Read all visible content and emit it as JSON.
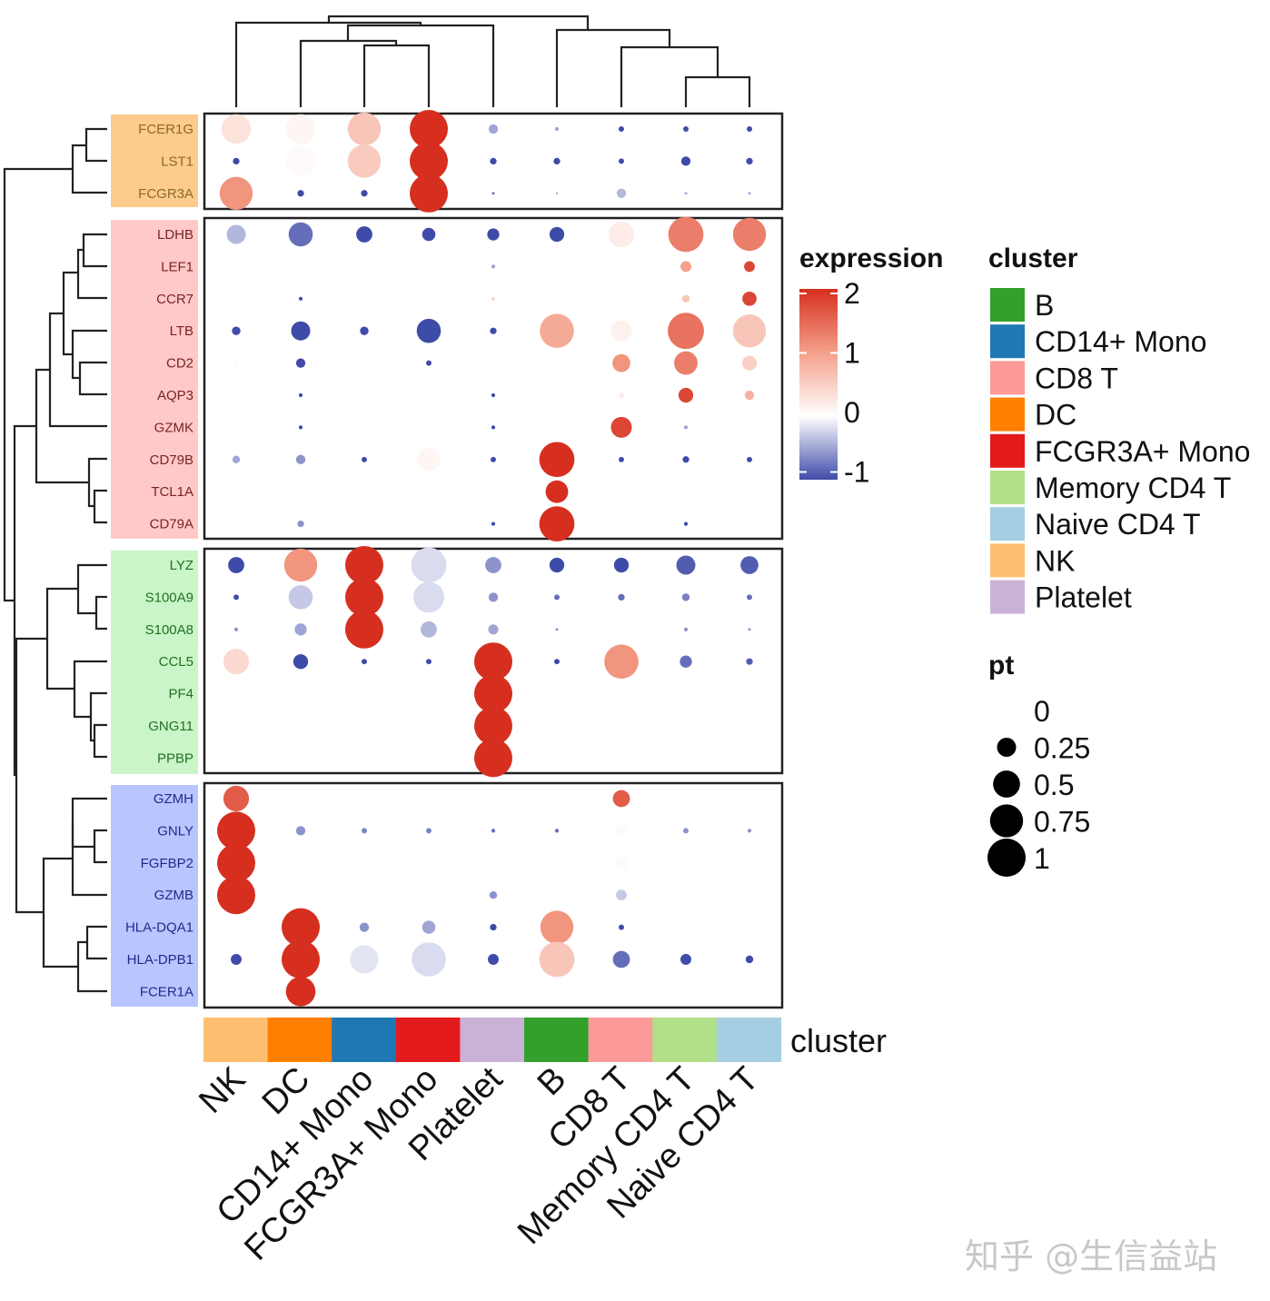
{
  "chart_data": {
    "type": "heatmap",
    "subtype": "dot plot with dendrograms",
    "clusters": [
      "NK",
      "DC",
      "CD14+ Mono",
      "FCGR3A+ Mono",
      "Platelet",
      "B",
      "CD8 T",
      "Memory CD4 T",
      "Naive CD4 T"
    ],
    "gene_groups": [
      {
        "color": "#FDCB8C",
        "text_color": "#8A6A2A",
        "genes": [
          "FCER1G",
          "LST1",
          "FCGR3A"
        ]
      },
      {
        "color": "#FFC9C9",
        "text_color": "#7A2424",
        "genes": [
          "LDHB",
          "LEF1",
          "CCR7",
          "LTB",
          "CD2",
          "AQP3",
          "GZMK",
          "CD79B",
          "TCL1A",
          "CD79A"
        ]
      },
      {
        "color": "#C9F5C9",
        "text_color": "#237023",
        "genes": [
          "LYZ",
          "S100A9",
          "S100A8",
          "CCL5",
          "PF4",
          "GNG11",
          "PPBP"
        ]
      },
      {
        "color": "#B9C5FF",
        "text_color": "#1E2C8C",
        "genes": [
          "GZMH",
          "GNLY",
          "FGFBP2",
          "GZMB",
          "HLA-DQA1",
          "HLA-DPB1",
          "FCER1A"
        ]
      }
    ],
    "expression": [
      [
        0.3,
        0.1,
        0.6,
        2,
        -0.5,
        -0.5,
        -1,
        -1,
        -1
      ],
      [
        -1,
        0.05,
        0.55,
        2,
        -1,
        -1,
        -1,
        -1,
        -1
      ],
      [
        1.1,
        -1,
        -1,
        2,
        -0.8,
        -0.5,
        -0.4,
        -0.5,
        -0.5
      ],
      [
        -0.4,
        -0.8,
        -1,
        -1,
        -1,
        -1,
        0.2,
        1.3,
        1.3
      ],
      [
        0,
        0,
        0,
        0,
        -0.5,
        0,
        0,
        1.0,
        1.8
      ],
      [
        0,
        -1,
        0,
        0,
        0.4,
        0,
        0,
        0.6,
        1.8
      ],
      [
        -1,
        -1,
        -1,
        -1,
        -1,
        0.9,
        0.15,
        1.4,
        0.6
      ],
      [
        0.05,
        -1,
        0,
        -1,
        0,
        0,
        1.1,
        1.3,
        0.5
      ],
      [
        0,
        -1,
        0,
        0,
        -1,
        0,
        0.2,
        1.8,
        0.8
      ],
      [
        0,
        -1,
        0,
        0,
        -1,
        0,
        1.8,
        -0.5,
        0
      ],
      [
        -0.5,
        -0.6,
        -1,
        0.1,
        -1,
        2,
        -1,
        -1,
        -1
      ],
      [
        0,
        0,
        0,
        0,
        0,
        2,
        0,
        0,
        0
      ],
      [
        0,
        -0.6,
        0,
        0,
        -1,
        2,
        0,
        -1,
        0
      ],
      [
        -1,
        1.1,
        2,
        -0.2,
        -0.6,
        -1,
        -1,
        -0.9,
        -0.9
      ],
      [
        -1,
        -0.3,
        2,
        -0.2,
        -0.6,
        -0.8,
        -0.8,
        -0.7,
        -0.8
      ],
      [
        -0.6,
        -0.5,
        2,
        -0.4,
        -0.5,
        -0.6,
        0,
        -0.6,
        -0.6
      ],
      [
        0.4,
        -1,
        -1,
        -1,
        2,
        -1,
        1.1,
        -0.8,
        -0.9
      ],
      [
        0,
        0,
        0,
        0,
        2,
        0,
        0,
        0,
        0
      ],
      [
        0,
        0,
        0,
        0,
        2,
        0,
        0,
        0,
        0
      ],
      [
        0,
        0,
        0,
        0,
        2,
        0,
        0,
        0,
        0
      ],
      [
        1.6,
        0,
        0,
        0,
        0,
        0,
        1.6,
        0,
        0
      ],
      [
        2,
        -0.6,
        -0.7,
        -0.7,
        -0.8,
        -0.8,
        0.05,
        -0.6,
        -0.6
      ],
      [
        2,
        0,
        0,
        0,
        0,
        0,
        0.05,
        0,
        0
      ],
      [
        2,
        0,
        0,
        0,
        -0.6,
        0,
        -0.3,
        0,
        0
      ],
      [
        0,
        2,
        -0.6,
        -0.5,
        -1,
        1.1,
        -1,
        0,
        0
      ],
      [
        -1,
        2,
        -0.15,
        -0.2,
        -1,
        0.6,
        -0.8,
        -1,
        -1
      ],
      [
        0,
        2,
        0,
        0,
        0,
        0,
        0,
        0,
        0
      ]
    ],
    "pt": [
      [
        0.6,
        0.6,
        0.75,
        1,
        0.06,
        0.01,
        0.02,
        0.02,
        0.02
      ],
      [
        0.03,
        0.6,
        0.75,
        1,
        0.03,
        0.03,
        0.02,
        0.06,
        0.03
      ],
      [
        0.75,
        0.03,
        0.03,
        1,
        0.005,
        0.003,
        0.06,
        0.005,
        0.005
      ],
      [
        0.25,
        0.4,
        0.18,
        0.12,
        0.1,
        0.15,
        0.45,
        0.85,
        0.75
      ],
      [
        0.003,
        0.003,
        0.005,
        0.005,
        0.01,
        0.003,
        0.005,
        0.08,
        0.08
      ],
      [
        0.003,
        0.01,
        0.003,
        0.005,
        0.01,
        0.003,
        0.003,
        0.04,
        0.14
      ],
      [
        0.05,
        0.25,
        0.05,
        0.4,
        0.03,
        0.8,
        0.3,
        0.9,
        0.75
      ],
      [
        0.02,
        0.06,
        0.003,
        0.02,
        0,
        0.003,
        0.22,
        0.38,
        0.15
      ],
      [
        0.003,
        0.01,
        0.003,
        0.003,
        0.01,
        0.003,
        0.02,
        0.15,
        0.06
      ],
      [
        0.003,
        0.01,
        0.003,
        0.003,
        0.01,
        0.003,
        0.3,
        0.01,
        0.005
      ],
      [
        0.04,
        0.06,
        0.02,
        0.35,
        0.02,
        0.85,
        0.02,
        0.03,
        0.02
      ],
      [
        0.003,
        0.003,
        0.003,
        0.003,
        0,
        0.35,
        0,
        0,
        0.003
      ],
      [
        0.003,
        0.03,
        0.003,
        0.003,
        0.01,
        0.85,
        0,
        0.01,
        0.003
      ],
      [
        0.18,
        0.75,
        1,
        0.85,
        0.18,
        0.15,
        0.15,
        0.25,
        0.22
      ],
      [
        0.02,
        0.4,
        1,
        0.65,
        0.06,
        0.02,
        0.03,
        0.04,
        0.02
      ],
      [
        0.01,
        0.1,
        1,
        0.18,
        0.07,
        0.005,
        0.003,
        0.01,
        0.005
      ],
      [
        0.45,
        0.15,
        0.02,
        0.02,
        1,
        0.02,
        0.8,
        0.1,
        0.03
      ],
      [
        0,
        0.005,
        0.003,
        0.003,
        1,
        0,
        0,
        0,
        0
      ],
      [
        0,
        0.003,
        0.003,
        0.003,
        1,
        0,
        0.003,
        0,
        0
      ],
      [
        0,
        0.003,
        0.003,
        0.005,
        1,
        0,
        0,
        0.003,
        0
      ],
      [
        0.45,
        0.003,
        0.003,
        0.003,
        0,
        0,
        0.2,
        0.003,
        0.003
      ],
      [
        1,
        0.06,
        0.02,
        0.02,
        0.01,
        0.01,
        0.1,
        0.02,
        0.01
      ],
      [
        1,
        0.003,
        0.003,
        0.003,
        0,
        0.003,
        0.1,
        0.003,
        0.003
      ],
      [
        1,
        0,
        0.005,
        0.005,
        0.04,
        0,
        0.08,
        0.005,
        0.005
      ],
      [
        0.003,
        1,
        0.06,
        0.12,
        0.03,
        0.75,
        0.02,
        0.003,
        0.003
      ],
      [
        0.08,
        1,
        0.55,
        0.8,
        0.08,
        0.85,
        0.2,
        0.08,
        0.04
      ],
      [
        0.003,
        0.6,
        0.003,
        0,
        0,
        0,
        0,
        0,
        0
      ]
    ],
    "cluster_colors": {
      "NK": "#FDBF6F",
      "DC": "#FF7F00",
      "CD14+ Mono": "#1F78B4",
      "FCGR3A+ Mono": "#E31A1C",
      "Platelet": "#CAB2D6",
      "B": "#33A02C",
      "CD8 T": "#FB9A99",
      "Memory CD4 T": "#B2DF8A",
      "Naive CD4 T": "#A6CEE3"
    },
    "annotation_label": "cluster",
    "color_legend": {
      "title": "expression",
      "ticks": [
        "2",
        "1",
        "0",
        "-1"
      ],
      "range": [
        -1,
        2
      ],
      "colors": {
        "low": "#3F4BA8",
        "mid": "#FFFFFF",
        "high": "#D62F1F"
      }
    },
    "cluster_legend": {
      "title": "cluster",
      "items": [
        "B",
        "CD14+ Mono",
        "CD8 T",
        "DC",
        "FCGR3A+ Mono",
        "Memory CD4 T",
        "Naive CD4 T",
        "NK",
        "Platelet"
      ]
    },
    "size_legend": {
      "title": "pt",
      "values": [
        0,
        0.25,
        0.5,
        0.75,
        1
      ],
      "labels": [
        "0",
        "0.25",
        "0.5",
        "0.75",
        "1"
      ]
    }
  },
  "watermark": "知乎 @生信益站"
}
